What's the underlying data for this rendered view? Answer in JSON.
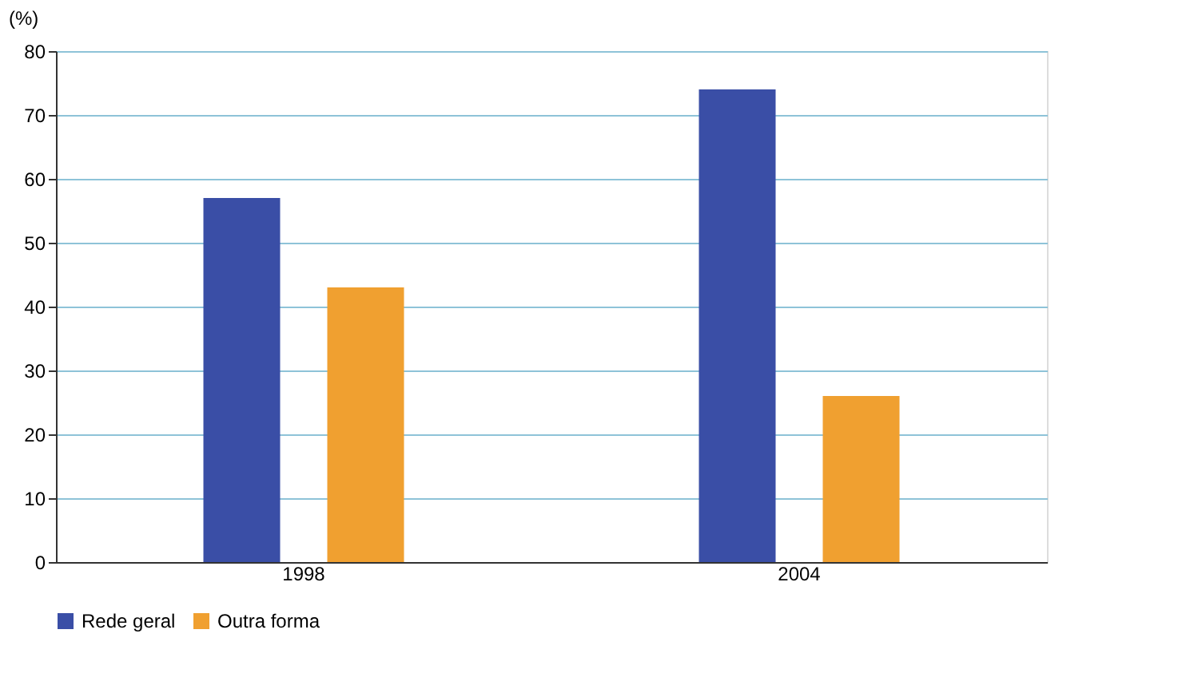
{
  "chart_data": {
    "type": "bar",
    "ylabel": "(%)",
    "categories": [
      "1998",
      "2004"
    ],
    "series": [
      {
        "name": "Rede geral",
        "color": "#3a4ea6",
        "values": [
          57,
          74
        ]
      },
      {
        "name": "Outra forma",
        "color": "#f0a030",
        "values": [
          43,
          26
        ]
      }
    ],
    "ylim": [
      0,
      80
    ],
    "yticks": [
      0,
      10,
      20,
      30,
      40,
      50,
      60,
      70,
      80
    ],
    "grid": "y",
    "legend": "bottom"
  }
}
